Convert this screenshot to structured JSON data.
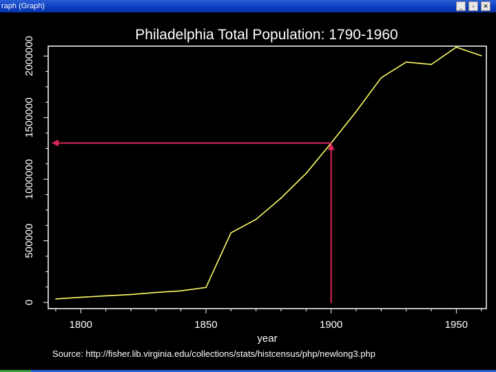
{
  "window": {
    "title": "raph (Graph)",
    "minimize_label": "_",
    "restore_label": "▫",
    "close_label": "✕"
  },
  "colors": {
    "background": "#000000",
    "line": "#ffff66",
    "arrow": "#e0285a",
    "text": "#ffffff"
  },
  "chart_data": {
    "type": "line",
    "title": "Philadelphia Total Population: 1790-1960",
    "xlabel": "year",
    "ylabel": "",
    "source": "Source: http://fisher.lib.virginia.edu/collections/stats/histcensus/php/newlong3.php",
    "xlim": [
      1787,
      1962
    ],
    "ylim": [
      0,
      2080000
    ],
    "xticks": [
      "1800",
      "1850",
      "1900",
      "1950"
    ],
    "xtick_values": [
      1800,
      1850,
      1900,
      1950
    ],
    "yticks": [
      "0",
      "500000",
      "1000000",
      "1500000",
      "2000000"
    ],
    "ytick_values": [
      0,
      500000,
      1000000,
      1500000,
      2000000
    ],
    "grid": false,
    "series": [
      {
        "x": [
          1790,
          1800,
          1810,
          1820,
          1830,
          1840,
          1850,
          1860,
          1870,
          1880,
          1890,
          1900,
          1910,
          1920,
          1930,
          1940,
          1950,
          1960
        ],
        "y": [
          28522,
          41220,
          53722,
          63802,
          80462,
          93665,
          121376,
          565529,
          674022,
          847170,
          1046964,
          1293697,
          1549008,
          1823779,
          1950961,
          1931334,
          2071605,
          2002512
        ]
      }
    ],
    "annotation": {
      "type": "arrows",
      "x": 1900,
      "y": 1293697
    }
  }
}
